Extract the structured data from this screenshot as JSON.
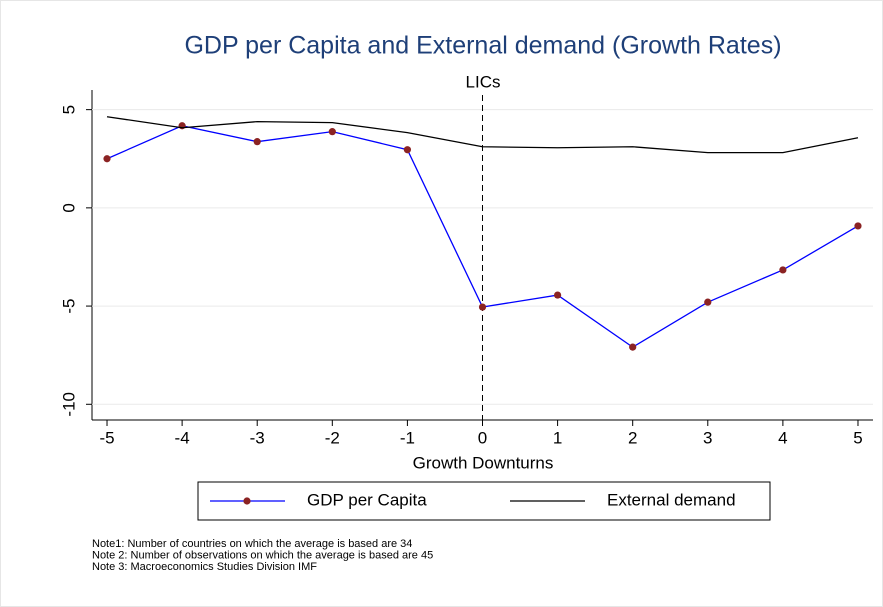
{
  "chart_data": {
    "type": "line",
    "title": "GDP per Capita and External demand (Growth Rates)",
    "subtitle": "LICs",
    "x_label": "Growth Downturns",
    "x": [
      -5,
      -4,
      -3,
      -2,
      -1,
      0,
      1,
      2,
      3,
      4,
      5
    ],
    "series": [
      {
        "name": "GDP per Capita",
        "color": "#0000ff",
        "marker_color": "#8b2323",
        "markers": true,
        "values": [
          2.5,
          4.18,
          3.37,
          3.88,
          2.96,
          -5.05,
          -4.44,
          -7.09,
          -4.8,
          -3.16,
          -0.92
        ]
      },
      {
        "name": "External demand",
        "color": "#000000",
        "markers": false,
        "values": [
          4.64,
          4.08,
          4.39,
          4.34,
          3.83,
          3.11,
          3.06,
          3.11,
          2.81,
          2.81,
          3.57
        ]
      }
    ],
    "xlim": [
      -5.2,
      5.2
    ],
    "xticks": [
      -5,
      -4,
      -3,
      -2,
      -1,
      0,
      1,
      2,
      3,
      4,
      5
    ],
    "ylim": [
      -10.8,
      6
    ],
    "yticks": [
      -10,
      -5,
      0,
      5
    ],
    "grid": true,
    "vline": 0,
    "notes": [
      "Note1: Number of countries on which the average is based are 34",
      "Note 2: Number of observations on which the average is based are 45",
      "Note 3: Macroeconomics Studies Division IMF"
    ]
  }
}
